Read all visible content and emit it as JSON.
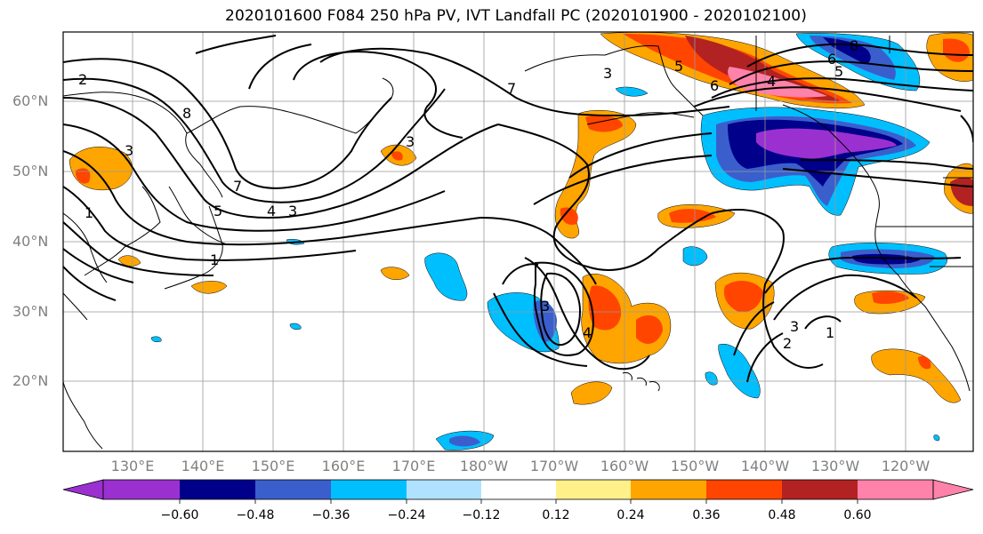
{
  "title": "2020101600 F084 250 hPa PV, IVT Landfall PC (2020101900 - 2020102100)",
  "lat_labels": [
    "60°N",
    "50°N",
    "40°N",
    "30°N",
    "20°N"
  ],
  "lon_labels": [
    "130°E",
    "140°E",
    "150°E",
    "160°E",
    "170°E",
    "180°W",
    "170°W",
    "160°W",
    "150°W",
    "140°W",
    "130°W",
    "120°W"
  ],
  "colorbar": {
    "ticks": [
      "−0.60",
      "−0.48",
      "−0.36",
      "−0.24",
      "−0.12",
      "0.12",
      "0.24",
      "0.36",
      "0.48",
      "0.60"
    ],
    "colors": [
      "#9b30d0",
      "#00008b",
      "#3a5fcd",
      "#00bfff",
      "#b0e2ff",
      "#ffffff",
      "#fff08a",
      "#ffa500",
      "#ff4500",
      "#b22222",
      "#ff82ab"
    ]
  },
  "contour_labels": [
    "2",
    "8",
    "3",
    "1",
    "7",
    "5",
    "4",
    "3",
    "1",
    "3",
    "7",
    "3",
    "5",
    "6",
    "4",
    "8",
    "6",
    "5",
    "3",
    "4",
    "3",
    "2",
    "1"
  ]
}
